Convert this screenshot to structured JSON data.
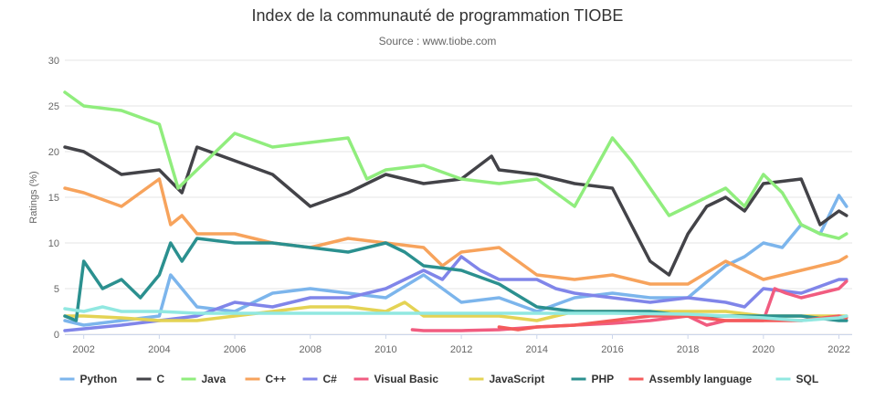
{
  "chart_data": {
    "type": "line",
    "title": "Index de la communauté de programmation TIOBE",
    "subtitle": "Source : www.tiobe.com",
    "ylabel": "Ratings (%)",
    "xlabel": "",
    "xlim": [
      2001.5,
      2022.35
    ],
    "ylim": [
      0,
      30
    ],
    "x_ticks": [
      2002,
      2004,
      2006,
      2008,
      2010,
      2012,
      2014,
      2016,
      2018,
      2020,
      2022
    ],
    "x_tick_labels": [
      "2002",
      "2004",
      "2006",
      "2008",
      "2010",
      "2012",
      "2014",
      "2016",
      "2018",
      "2020",
      "2022"
    ],
    "y_ticks": [
      0,
      5,
      10,
      15,
      20,
      25,
      30
    ],
    "y_tick_labels": [
      "0",
      "5",
      "10",
      "15",
      "20",
      "25",
      "30"
    ],
    "grid": true,
    "legend_position": "bottom",
    "series": [
      {
        "name": "Python",
        "color": "#7cb5ec",
        "points": [
          [
            2001.5,
            1.5
          ],
          [
            2002,
            1.0
          ],
          [
            2003,
            1.5
          ],
          [
            2004,
            2.0
          ],
          [
            2004.3,
            6.5
          ],
          [
            2004.6,
            5.0
          ],
          [
            2005,
            3.0
          ],
          [
            2006,
            2.5
          ],
          [
            2007,
            4.5
          ],
          [
            2008,
            5.0
          ],
          [
            2009,
            4.5
          ],
          [
            2010,
            4.0
          ],
          [
            2011,
            6.5
          ],
          [
            2011.5,
            5.0
          ],
          [
            2012,
            3.5
          ],
          [
            2013,
            4.0
          ],
          [
            2014,
            2.5
          ],
          [
            2015,
            4.0
          ],
          [
            2016,
            4.5
          ],
          [
            2017,
            4.0
          ],
          [
            2018,
            4.0
          ],
          [
            2019,
            7.5
          ],
          [
            2019.5,
            8.5
          ],
          [
            2020,
            10.0
          ],
          [
            2020.5,
            9.5
          ],
          [
            2021,
            12.0
          ],
          [
            2021.5,
            11.0
          ],
          [
            2022,
            15.2
          ],
          [
            2022.2,
            14.0
          ]
        ]
      },
      {
        "name": "C",
        "color": "#434348",
        "points": [
          [
            2001.5,
            20.5
          ],
          [
            2002,
            20.0
          ],
          [
            2003,
            17.5
          ],
          [
            2004,
            18.0
          ],
          [
            2004.6,
            15.5
          ],
          [
            2005,
            20.5
          ],
          [
            2006,
            19.0
          ],
          [
            2007,
            17.5
          ],
          [
            2008,
            14.0
          ],
          [
            2009,
            15.5
          ],
          [
            2010,
            17.5
          ],
          [
            2011,
            16.5
          ],
          [
            2012,
            17.0
          ],
          [
            2012.8,
            19.5
          ],
          [
            2013,
            18.0
          ],
          [
            2014,
            17.5
          ],
          [
            2015,
            16.5
          ],
          [
            2016,
            16.0
          ],
          [
            2016.5,
            12.0
          ],
          [
            2017,
            8.0
          ],
          [
            2017.5,
            6.5
          ],
          [
            2018,
            11.0
          ],
          [
            2018.5,
            14.0
          ],
          [
            2019,
            15.0
          ],
          [
            2019.5,
            13.5
          ],
          [
            2020,
            16.5
          ],
          [
            2021,
            17.0
          ],
          [
            2021.5,
            12.0
          ],
          [
            2022,
            13.5
          ],
          [
            2022.2,
            13.0
          ]
        ]
      },
      {
        "name": "Java",
        "color": "#90ed7d",
        "points": [
          [
            2001.5,
            26.5
          ],
          [
            2002,
            25.0
          ],
          [
            2003,
            24.5
          ],
          [
            2004,
            23.0
          ],
          [
            2004.5,
            16.0
          ],
          [
            2005,
            18.0
          ],
          [
            2006,
            22.0
          ],
          [
            2007,
            20.5
          ],
          [
            2008,
            21.0
          ],
          [
            2009,
            21.5
          ],
          [
            2009.5,
            17.0
          ],
          [
            2010,
            18.0
          ],
          [
            2011,
            18.5
          ],
          [
            2012,
            17.0
          ],
          [
            2013,
            16.5
          ],
          [
            2014,
            17.0
          ],
          [
            2015,
            14.0
          ],
          [
            2016,
            21.5
          ],
          [
            2016.5,
            19.0
          ],
          [
            2017,
            16.0
          ],
          [
            2017.5,
            13.0
          ],
          [
            2018,
            14.0
          ],
          [
            2019,
            16.0
          ],
          [
            2019.5,
            14.0
          ],
          [
            2020,
            17.5
          ],
          [
            2020.5,
            15.5
          ],
          [
            2021,
            12.0
          ],
          [
            2021.5,
            11.0
          ],
          [
            2022,
            10.5
          ],
          [
            2022.2,
            11.0
          ]
        ]
      },
      {
        "name": "C++",
        "color": "#f7a35c",
        "points": [
          [
            2001.5,
            16.0
          ],
          [
            2002,
            15.5
          ],
          [
            2003,
            14.0
          ],
          [
            2004,
            17.0
          ],
          [
            2004.3,
            12.0
          ],
          [
            2004.6,
            13.0
          ],
          [
            2005,
            11.0
          ],
          [
            2006,
            11.0
          ],
          [
            2007,
            10.0
          ],
          [
            2008,
            9.5
          ],
          [
            2009,
            10.5
          ],
          [
            2010,
            10.0
          ],
          [
            2011,
            9.5
          ],
          [
            2011.5,
            7.5
          ],
          [
            2012,
            9.0
          ],
          [
            2013,
            9.5
          ],
          [
            2014,
            6.5
          ],
          [
            2015,
            6.0
          ],
          [
            2016,
            6.5
          ],
          [
            2017,
            5.5
          ],
          [
            2018,
            5.5
          ],
          [
            2019,
            8.0
          ],
          [
            2019.5,
            7.0
          ],
          [
            2020,
            6.0
          ],
          [
            2021,
            7.0
          ],
          [
            2022,
            8.0
          ],
          [
            2022.2,
            8.5
          ]
        ]
      },
      {
        "name": "C#",
        "color": "#8085e9",
        "points": [
          [
            2001.5,
            0.4
          ],
          [
            2002,
            0.6
          ],
          [
            2003,
            1.0
          ],
          [
            2004,
            1.5
          ],
          [
            2005,
            2.0
          ],
          [
            2006,
            3.5
          ],
          [
            2007,
            3.0
          ],
          [
            2008,
            4.0
          ],
          [
            2009,
            4.0
          ],
          [
            2010,
            5.0
          ],
          [
            2011,
            7.0
          ],
          [
            2011.5,
            6.0
          ],
          [
            2012,
            8.5
          ],
          [
            2012.5,
            7.0
          ],
          [
            2013,
            6.0
          ],
          [
            2014,
            6.0
          ],
          [
            2014.5,
            5.0
          ],
          [
            2015,
            4.5
          ],
          [
            2016,
            4.0
          ],
          [
            2017,
            3.5
          ],
          [
            2018,
            4.0
          ],
          [
            2019,
            3.5
          ],
          [
            2019.5,
            3.0
          ],
          [
            2020,
            5.0
          ],
          [
            2021,
            4.5
          ],
          [
            2022,
            6.0
          ],
          [
            2022.2,
            6.0
          ]
        ]
      },
      {
        "name": "Visual Basic",
        "color": "#f15c80",
        "points": [
          [
            2010.7,
            0.5
          ],
          [
            2011,
            0.4
          ],
          [
            2012,
            0.4
          ],
          [
            2013,
            0.5
          ],
          [
            2014,
            0.8
          ],
          [
            2015,
            1.0
          ],
          [
            2016,
            1.2
          ],
          [
            2017,
            1.5
          ],
          [
            2018,
            2.0
          ],
          [
            2018.5,
            1.0
          ],
          [
            2019,
            1.5
          ],
          [
            2020,
            1.5
          ],
          [
            2020.3,
            5.0
          ],
          [
            2020.6,
            4.5
          ],
          [
            2021,
            4.0
          ],
          [
            2021.5,
            4.5
          ],
          [
            2022,
            5.0
          ],
          [
            2022.2,
            5.8
          ]
        ]
      },
      {
        "name": "JavaScript",
        "color": "#e4d354",
        "points": [
          [
            2001.5,
            2.0
          ],
          [
            2002,
            2.0
          ],
          [
            2003,
            1.8
          ],
          [
            2004,
            1.5
          ],
          [
            2005,
            1.5
          ],
          [
            2006,
            2.0
          ],
          [
            2007,
            2.5
          ],
          [
            2008,
            3.0
          ],
          [
            2009,
            3.0
          ],
          [
            2010,
            2.5
          ],
          [
            2010.5,
            3.5
          ],
          [
            2011,
            2.0
          ],
          [
            2012,
            2.0
          ],
          [
            2013,
            2.0
          ],
          [
            2014,
            1.5
          ],
          [
            2015,
            2.5
          ],
          [
            2016,
            2.5
          ],
          [
            2017,
            2.5
          ],
          [
            2018,
            2.5
          ],
          [
            2019,
            2.5
          ],
          [
            2020,
            2.0
          ],
          [
            2021,
            2.0
          ],
          [
            2022,
            2.0
          ],
          [
            2022.2,
            2.0
          ]
        ]
      },
      {
        "name": "PHP",
        "color": "#2b908f",
        "points": [
          [
            2001.5,
            2.0
          ],
          [
            2001.8,
            1.5
          ],
          [
            2002,
            8.0
          ],
          [
            2002.5,
            5.0
          ],
          [
            2003,
            6.0
          ],
          [
            2003.5,
            4.0
          ],
          [
            2004,
            6.5
          ],
          [
            2004.3,
            10.0
          ],
          [
            2004.6,
            8.0
          ],
          [
            2005,
            10.5
          ],
          [
            2006,
            10.0
          ],
          [
            2007,
            10.0
          ],
          [
            2008,
            9.5
          ],
          [
            2009,
            9.0
          ],
          [
            2010,
            10.0
          ],
          [
            2010.5,
            9.0
          ],
          [
            2011,
            7.5
          ],
          [
            2012,
            7.0
          ],
          [
            2013,
            5.5
          ],
          [
            2014,
            3.0
          ],
          [
            2015,
            2.5
          ],
          [
            2016,
            2.5
          ],
          [
            2017,
            2.5
          ],
          [
            2018,
            2.0
          ],
          [
            2019,
            2.0
          ],
          [
            2020,
            2.0
          ],
          [
            2021,
            2.0
          ],
          [
            2022,
            1.5
          ],
          [
            2022.2,
            1.5
          ]
        ]
      },
      {
        "name": "Assembly language",
        "color": "#f45b5b",
        "points": [
          [
            2013,
            0.8
          ],
          [
            2013.5,
            0.5
          ],
          [
            2014,
            0.8
          ],
          [
            2015,
            1.0
          ],
          [
            2016,
            1.5
          ],
          [
            2017,
            2.0
          ],
          [
            2018,
            2.0
          ],
          [
            2019,
            1.5
          ],
          [
            2020,
            1.5
          ],
          [
            2021,
            1.5
          ],
          [
            2022,
            2.0
          ],
          [
            2022.2,
            1.8
          ]
        ]
      },
      {
        "name": "SQL",
        "color": "#91e8e1",
        "points": [
          [
            2001.5,
            2.8
          ],
          [
            2002,
            2.5
          ],
          [
            2002.5,
            3.0
          ],
          [
            2003,
            2.5
          ],
          [
            2004,
            2.5
          ],
          [
            2005,
            2.3
          ],
          [
            2008,
            2.3
          ],
          [
            2012,
            2.3
          ],
          [
            2016,
            2.3
          ],
          [
            2018,
            2.2
          ],
          [
            2019,
            2.0
          ],
          [
            2020,
            1.8
          ],
          [
            2021,
            1.5
          ],
          [
            2022,
            1.8
          ],
          [
            2022.2,
            2.0
          ]
        ]
      }
    ]
  }
}
